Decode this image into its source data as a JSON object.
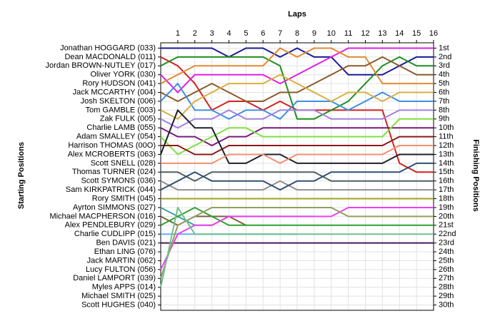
{
  "chart_data": {
    "type": "line",
    "title": "Laps",
    "y_label": "Starting Positions",
    "y2_label": "Finishing Positions",
    "x": [
      0,
      1,
      2,
      3,
      4,
      5,
      6,
      7,
      8,
      9,
      10,
      11,
      12,
      13,
      14,
      15,
      16
    ],
    "xlim": [
      0,
      16
    ],
    "xticks": [
      1,
      2,
      3,
      4,
      5,
      6,
      7,
      8,
      9,
      10,
      11,
      12,
      13,
      14,
      15,
      16
    ],
    "ylim": [
      0.4,
      30.6
    ],
    "y_reversed": true,
    "grid": true,
    "yticks": [
      {
        "value": 1,
        "label": "1st"
      },
      {
        "value": 2,
        "label": "2nd"
      },
      {
        "value": 3,
        "label": "3rd"
      },
      {
        "value": 4,
        "label": "4th"
      },
      {
        "value": 5,
        "label": "5th"
      },
      {
        "value": 6,
        "label": "6th"
      },
      {
        "value": 7,
        "label": "7th"
      },
      {
        "value": 8,
        "label": "8th"
      },
      {
        "value": 9,
        "label": "9th"
      },
      {
        "value": 10,
        "label": "10th"
      },
      {
        "value": 11,
        "label": "11th"
      },
      {
        "value": 12,
        "label": "12th"
      },
      {
        "value": 13,
        "label": "13th"
      },
      {
        "value": 14,
        "label": "14th"
      },
      {
        "value": 15,
        "label": "15th"
      },
      {
        "value": 16,
        "label": "16th"
      },
      {
        "value": 17,
        "label": "17th"
      },
      {
        "value": 18,
        "label": "18th"
      },
      {
        "value": 19,
        "label": "19th"
      },
      {
        "value": 20,
        "label": "20th"
      },
      {
        "value": 21,
        "label": "21st"
      },
      {
        "value": 22,
        "label": "22nd"
      },
      {
        "value": 23,
        "label": "23rd"
      },
      {
        "value": 24,
        "label": "24th"
      },
      {
        "value": 25,
        "label": "25th"
      },
      {
        "value": 26,
        "label": "26th"
      },
      {
        "value": 27,
        "label": "27th"
      },
      {
        "value": 28,
        "label": "28th"
      },
      {
        "value": 29,
        "label": "29th"
      },
      {
        "value": 30,
        "label": "30th"
      }
    ],
    "series": [
      {
        "name": "Jonathan HOGGARD (033)",
        "color": "#1a1a9a",
        "values": [
          1,
          1,
          1,
          1,
          2,
          1,
          1,
          2,
          1,
          2,
          2,
          4,
          4,
          4,
          3,
          2,
          2
        ]
      },
      {
        "name": "Dean MACDONALD (011)",
        "color": "#d42020",
        "values": [
          2,
          3,
          5,
          8,
          7,
          7,
          8,
          7,
          8,
          8,
          8,
          8,
          8,
          8,
          14,
          15,
          15
        ]
      },
      {
        "name": "Jordan BROWN-NUTLEY (017)",
        "color": "#1f8f1f",
        "values": [
          3,
          2,
          2,
          2,
          2,
          2,
          2,
          3,
          9,
          9,
          8,
          7,
          5,
          3,
          2,
          3,
          3
        ]
      },
      {
        "name": "Oliver YORK (030)",
        "color": "#e020e0",
        "values": [
          4,
          6,
          4,
          4,
          4,
          4,
          4,
          5,
          4,
          3,
          2,
          1,
          1,
          1,
          1,
          1,
          1
        ]
      },
      {
        "name": "Rory HUDSON (041)",
        "color": "#e08a30",
        "values": [
          5,
          4,
          3,
          3,
          3,
          3,
          3,
          1,
          2,
          1,
          1,
          2,
          2,
          5,
          5,
          5,
          5
        ]
      },
      {
        "name": "Jack MCCARTHY (004)",
        "color": "#8b5a2b",
        "values": [
          6,
          7,
          6,
          5,
          6,
          7,
          7,
          6,
          6,
          5,
          4,
          3,
          3,
          2,
          3,
          4,
          4
        ]
      },
      {
        "name": "Josh SKELTON (006)",
        "color": "#3d8fe0",
        "values": [
          7,
          5,
          8,
          8,
          9,
          8,
          8,
          9,
          7,
          7,
          7,
          8,
          7,
          6,
          7,
          7,
          7
        ]
      },
      {
        "name": "Tom GAMBLE (003)",
        "color": "#d8b040",
        "values": [
          8,
          9,
          7,
          6,
          5,
          5,
          5,
          4,
          5,
          6,
          7,
          6,
          6,
          7,
          6,
          6,
          6
        ]
      },
      {
        "name": "Zak FULK (005)",
        "color": "#a080e0",
        "values": [
          9,
          10,
          9,
          9,
          8,
          9,
          9,
          8,
          8,
          8,
          9,
          9,
          9,
          9,
          8,
          8,
          8
        ]
      },
      {
        "name": "Charlie LAMB (055)",
        "color": "#7a1a7a",
        "values": [
          10,
          11,
          11,
          12,
          11,
          11,
          10,
          10,
          10,
          10,
          10,
          10,
          10,
          10,
          10,
          10,
          10
        ]
      },
      {
        "name": "Adam SMALLEY (054)",
        "color": "#80e040",
        "values": [
          11,
          13,
          12,
          11,
          10,
          10,
          11,
          11,
          11,
          11,
          11,
          11,
          11,
          11,
          9,
          9,
          9
        ]
      },
      {
        "name": "Harrison THOMAS (00O)",
        "color": "#8b1a1a",
        "values": [
          12,
          12,
          13,
          13,
          12,
          12,
          12,
          12,
          12,
          12,
          12,
          12,
          12,
          12,
          11,
          11,
          11
        ]
      },
      {
        "name": "Alex MCROBERTS (063)",
        "color": "#20202a",
        "values": [
          13,
          8,
          10,
          10,
          14,
          14,
          13,
          13,
          14,
          14,
          14,
          14,
          14,
          14,
          13,
          13,
          13
        ]
      },
      {
        "name": "Scott SNELL (028)",
        "color": "#f09070",
        "values": [
          14,
          14,
          14,
          14,
          13,
          13,
          13,
          14,
          13,
          13,
          13,
          13,
          13,
          13,
          12,
          12,
          12
        ]
      },
      {
        "name": "Thomas TURNER (024)",
        "color": "#506060",
        "values": [
          15,
          15,
          16,
          15,
          15,
          15,
          15,
          15,
          15,
          15,
          16,
          16,
          16,
          16,
          16,
          16,
          16
        ]
      },
      {
        "name": "Scott SYMONS (036)",
        "color": "#909090",
        "values": [
          16,
          17,
          17,
          17,
          17,
          17,
          17,
          16,
          17,
          17,
          17,
          17,
          17,
          17,
          17,
          17,
          17
        ]
      },
      {
        "name": "Sam KIRKPATRICK (044)",
        "color": "#305070",
        "values": [
          17,
          16,
          15,
          16,
          16,
          16,
          16,
          17,
          16,
          16,
          15,
          15,
          15,
          15,
          15,
          14,
          14
        ]
      },
      {
        "name": "Rory SMITH (045)",
        "color": "#a0a020",
        "values": [
          18,
          18,
          18,
          18,
          18,
          18,
          18,
          18,
          18,
          18,
          18,
          18,
          18,
          18,
          18,
          18,
          18
        ]
      },
      {
        "name": "Ayrton SIMMONS (027)",
        "color": "#40a0a0",
        "values": [
          19,
          20,
          21,
          21,
          20,
          20,
          20,
          20,
          20,
          20,
          null,
          null,
          null,
          null,
          null,
          null,
          null
        ]
      },
      {
        "name": "Michael MACPHERSON (016)",
        "color": "#806040",
        "values": [
          20,
          21,
          20,
          20,
          20,
          21,
          null,
          null,
          null,
          null,
          null,
          null,
          null,
          null,
          null,
          null,
          null
        ]
      },
      {
        "name": "Alex PENDLEBURY (029)",
        "color": "#30a030",
        "values": [
          21,
          20,
          19,
          20,
          21,
          21,
          21,
          21,
          21,
          21,
          21,
          21,
          21,
          21,
          21,
          21,
          21
        ]
      },
      {
        "name": "Charlie CUDLIPP (015)",
        "color": "#60b0f0",
        "values": [
          22,
          22,
          22,
          22,
          22,
          22,
          22,
          22,
          22,
          null,
          null,
          null,
          null,
          null,
          null,
          null,
          null
        ]
      },
      {
        "name": "Ben DAVIS (021)",
        "color": "#4a1a5a",
        "values": [
          23,
          23,
          23,
          23,
          23,
          23,
          23,
          23,
          23,
          23,
          23,
          23,
          23,
          23,
          23,
          23,
          23
        ]
      },
      {
        "name": "Ethan LING (076)",
        "color": "#999999",
        "values": [
          24,
          null,
          null,
          null,
          null,
          null,
          null,
          null,
          null,
          null,
          null,
          null,
          null,
          null,
          null,
          null,
          null
        ]
      },
      {
        "name": "Jack MARTIN (062)",
        "color": "#999999",
        "values": [
          25,
          null,
          null,
          null,
          null,
          null,
          null,
          null,
          null,
          null,
          null,
          null,
          null,
          null,
          null,
          null,
          null
        ]
      },
      {
        "name": "Lucy FULTON (056)",
        "color": "#f040f0",
        "values": [
          26,
          22,
          21,
          21,
          20,
          20,
          20,
          20,
          20,
          20,
          20,
          19,
          19,
          19,
          19,
          19,
          19
        ]
      },
      {
        "name": "Daniel LAMPORT (039)",
        "color": "#90a060",
        "values": [
          27,
          21,
          20,
          19,
          19,
          19,
          19,
          19,
          19,
          19,
          19,
          20,
          20,
          20,
          20,
          20,
          20
        ]
      },
      {
        "name": "Myles APPS (014)",
        "color": "#70c090",
        "values": [
          28,
          19,
          22,
          22,
          22,
          22,
          22,
          22,
          22,
          22,
          22,
          22,
          22,
          22,
          22,
          22,
          22
        ]
      },
      {
        "name": "Michael SMITH (025)",
        "color": "#999999",
        "values": [
          29,
          null,
          null,
          null,
          null,
          null,
          null,
          null,
          null,
          null,
          null,
          null,
          null,
          null,
          null,
          null,
          null
        ]
      },
      {
        "name": "Scott HUGHES (040)",
        "color": "#999999",
        "values": [
          30,
          null,
          null,
          null,
          null,
          null,
          null,
          null,
          null,
          null,
          null,
          null,
          null,
          null,
          null,
          null,
          null
        ]
      }
    ]
  }
}
